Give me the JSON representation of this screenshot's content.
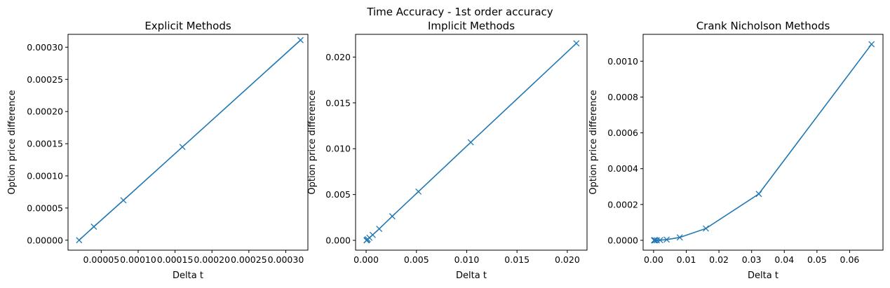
{
  "figure": {
    "suptitle": "Time Accuracy - 1st order accuracy"
  },
  "colors": {
    "series": "#1f77b4"
  },
  "chart_data": [
    {
      "type": "line",
      "title": "Explicit Methods",
      "xlabel": "Delta t",
      "ylabel": "Option price difference",
      "xlim": [
        5e-06,
        0.00033
      ],
      "ylim": [
        -1.55e-05,
        0.00032
      ],
      "xticks": [
        {
          "value": 5e-05,
          "label": "0.00005"
        },
        {
          "value": 0.0001,
          "label": "0.00010"
        },
        {
          "value": 0.00015,
          "label": "0.00015"
        },
        {
          "value": 0.0002,
          "label": "0.00020"
        },
        {
          "value": 0.00025,
          "label": "0.00025"
        },
        {
          "value": 0.0003,
          "label": "0.00030"
        }
      ],
      "yticks": [
        {
          "value": 0,
          "label": "0.00000"
        },
        {
          "value": 5e-05,
          "label": "0.00005"
        },
        {
          "value": 0.0001,
          "label": "0.00010"
        },
        {
          "value": 0.00015,
          "label": "0.00015"
        },
        {
          "value": 0.0002,
          "label": "0.00020"
        },
        {
          "value": 0.00025,
          "label": "0.00025"
        },
        {
          "value": 0.0003,
          "label": "0.00030"
        }
      ],
      "x": [
        2e-05,
        4e-05,
        8e-05,
        0.00016,
        0.00032
      ],
      "y": [
        0.0,
        2.1e-05,
        6.2e-05,
        0.000145,
        0.000311
      ],
      "marker": "x",
      "grid": false
    },
    {
      "type": "line",
      "title": "Implicit Methods",
      "xlabel": "Delta t",
      "ylabel": "Option price difference",
      "xlim": [
        -0.00105,
        0.02196
      ],
      "ylim": [
        -0.00107,
        0.02248
      ],
      "xticks": [
        {
          "value": 0,
          "label": "0.000"
        },
        {
          "value": 0.005,
          "label": "0.005"
        },
        {
          "value": 0.01,
          "label": "0.010"
        },
        {
          "value": 0.015,
          "label": "0.015"
        },
        {
          "value": 0.02,
          "label": "0.020"
        }
      ],
      "yticks": [
        {
          "value": 0,
          "label": "0.000"
        },
        {
          "value": 0.005,
          "label": "0.005"
        },
        {
          "value": 0.01,
          "label": "0.010"
        },
        {
          "value": 0.015,
          "label": "0.015"
        },
        {
          "value": 0.02,
          "label": "0.020"
        }
      ],
      "x": [
        4e-05,
        8e-05,
        0.00016,
        0.00033,
        0.00065,
        0.0013,
        0.0026,
        0.0052,
        0.0104,
        0.0209
      ],
      "y": [
        0.0,
        4e-05,
        0.00012,
        0.00028,
        0.0006,
        0.00126,
        0.00263,
        0.00532,
        0.0107,
        0.0215
      ],
      "marker": "x",
      "grid": false
    },
    {
      "type": "line",
      "title": "Crank Nicholson Methods",
      "xlabel": "Delta t",
      "ylabel": "Option price difference",
      "xlim": [
        -0.0032,
        0.0702
      ],
      "ylim": [
        -5.5e-05,
        0.00115
      ],
      "xticks": [
        {
          "value": 0,
          "label": "0.00"
        },
        {
          "value": 0.01,
          "label": "0.01"
        },
        {
          "value": 0.02,
          "label": "0.02"
        },
        {
          "value": 0.03,
          "label": "0.03"
        },
        {
          "value": 0.04,
          "label": "0.04"
        },
        {
          "value": 0.05,
          "label": "0.05"
        },
        {
          "value": 0.06,
          "label": "0.06"
        }
      ],
      "yticks": [
        {
          "value": 0,
          "label": "0.0000"
        },
        {
          "value": 0.0002,
          "label": "0.0002"
        },
        {
          "value": 0.0004,
          "label": "0.0004"
        },
        {
          "value": 0.0006,
          "label": "0.0006"
        },
        {
          "value": 0.0008,
          "label": "0.0008"
        },
        {
          "value": 0.001,
          "label": "0.0010"
        }
      ],
      "x": [
        0.00013,
        0.00025,
        0.0005,
        0.001,
        0.002,
        0.004,
        0.008,
        0.016,
        0.0322,
        0.0667
      ],
      "y": [
        0.0,
        0.0,
        0.0,
        0.0,
        1e-06,
        4e-06,
        1.6e-05,
        6.6e-05,
        0.000259,
        0.001095
      ],
      "marker": "x",
      "grid": false
    }
  ]
}
